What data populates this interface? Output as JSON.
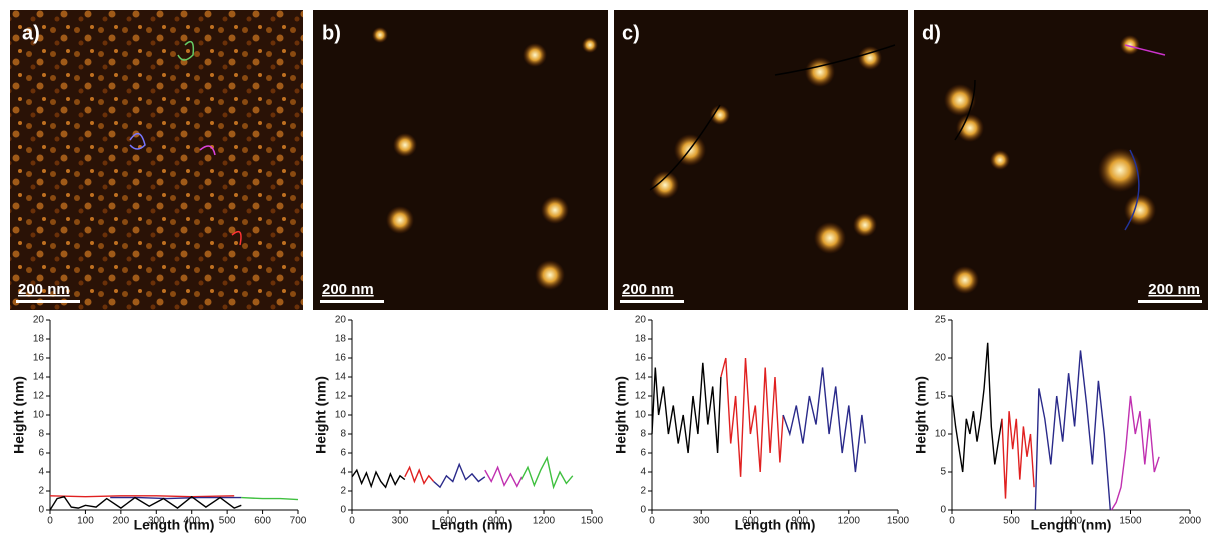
{
  "images": [
    {
      "label": "a)",
      "scale_bar": "200 nm"
    },
    {
      "label": "b)",
      "scale_bar": "200 nm"
    },
    {
      "label": "c)",
      "scale_bar": "200 nm"
    },
    {
      "label": "d)",
      "scale_bar": "200 nm"
    }
  ],
  "chart_data": [
    {
      "type": "line",
      "xlabel": "Length (nm)",
      "ylabel": "Height (nm)",
      "xlim": [
        0,
        700
      ],
      "xticks": [
        0,
        100,
        200,
        300,
        400,
        500,
        600,
        700
      ],
      "ylim": [
        0,
        20
      ],
      "yticks": [
        0,
        2,
        4,
        6,
        8,
        10,
        12,
        14,
        16,
        18,
        20
      ],
      "series": [
        {
          "color": "#e02020",
          "x": [
            0,
            100,
            200,
            300,
            400,
            520
          ],
          "values": [
            1.5,
            1.4,
            1.5,
            1.5,
            1.4,
            1.5
          ]
        },
        {
          "color": "#2a2a8a",
          "x": [
            170,
            250,
            330,
            420,
            500,
            540
          ],
          "values": [
            1.3,
            1.3,
            1.2,
            1.3,
            1.3,
            1.3
          ]
        },
        {
          "color": "#40c040",
          "x": [
            540,
            600,
            650,
            700
          ],
          "values": [
            1.3,
            1.2,
            1.2,
            1.1
          ]
        },
        {
          "color": "#000000",
          "x": [
            0,
            20,
            40,
            60,
            80,
            100,
            130,
            160,
            200,
            240,
            280,
            320,
            360,
            400,
            440,
            480,
            520,
            540
          ],
          "values": [
            0,
            1.2,
            1.4,
            0.3,
            0.2,
            0.5,
            0.3,
            1.2,
            0.2,
            1.3,
            0.4,
            1.2,
            0.2,
            1.4,
            0.3,
            1.3,
            0.2,
            0.5
          ]
        }
      ]
    },
    {
      "type": "line",
      "xlabel": "Length (nm)",
      "ylabel": "Height (nm)",
      "xlim": [
        0,
        1500
      ],
      "xticks": [
        0,
        300,
        600,
        900,
        1200,
        1500
      ],
      "ylim": [
        0,
        20
      ],
      "yticks": [
        0,
        2,
        4,
        6,
        8,
        10,
        12,
        14,
        16,
        18,
        20
      ],
      "series": [
        {
          "color": "#000000",
          "x": [
            0,
            30,
            60,
            90,
            120,
            150,
            180,
            210,
            240,
            270,
            300,
            330
          ],
          "values": [
            3.5,
            4.2,
            2.8,
            3.9,
            2.5,
            4,
            3,
            2.4,
            3.8,
            2.7,
            3.6,
            3.2
          ]
        },
        {
          "color": "#e02020",
          "x": [
            330,
            360,
            390,
            420,
            450,
            480,
            510
          ],
          "values": [
            3.5,
            4.5,
            3,
            4.2,
            2.8,
            3.6,
            3
          ]
        },
        {
          "color": "#2a2a8a",
          "x": [
            510,
            550,
            590,
            630,
            670,
            710,
            750,
            790,
            830
          ],
          "values": [
            3,
            2.4,
            3.6,
            3,
            4.8,
            3.2,
            3.8,
            3,
            3.5
          ]
        },
        {
          "color": "#c030b0",
          "x": [
            830,
            870,
            910,
            950,
            990,
            1030,
            1060
          ],
          "values": [
            4.2,
            3,
            4.5,
            2.6,
            3.8,
            2.5,
            3.5
          ]
        },
        {
          "color": "#40c040",
          "x": [
            1060,
            1100,
            1140,
            1180,
            1220,
            1260,
            1300,
            1340,
            1380
          ],
          "values": [
            3.2,
            4.5,
            2.6,
            4.2,
            5.5,
            2.4,
            4,
            2.8,
            3.6
          ]
        }
      ]
    },
    {
      "type": "line",
      "xlabel": "Length (nm)",
      "ylabel": "Height (nm)",
      "xlim": [
        0,
        1500
      ],
      "xticks": [
        0,
        300,
        600,
        900,
        1200,
        1500
      ],
      "ylim": [
        0,
        20
      ],
      "yticks": [
        0,
        2,
        4,
        6,
        8,
        10,
        12,
        14,
        16,
        18,
        20
      ],
      "series": [
        {
          "color": "#000000",
          "x": [
            0,
            20,
            40,
            70,
            100,
            130,
            160,
            190,
            220,
            250,
            280,
            310,
            340,
            370,
            400,
            420
          ],
          "values": [
            8,
            15,
            10,
            13,
            8,
            11,
            7,
            10,
            6,
            12,
            8,
            15.5,
            9,
            13,
            6,
            14
          ]
        },
        {
          "color": "#e02020",
          "x": [
            420,
            450,
            480,
            510,
            540,
            570,
            600,
            630,
            660,
            690,
            720,
            750,
            780,
            800
          ],
          "values": [
            14,
            16,
            7,
            12,
            3.5,
            16,
            8,
            11,
            4,
            15,
            6,
            14,
            5,
            10
          ]
        },
        {
          "color": "#2a2a8a",
          "x": [
            800,
            840,
            880,
            920,
            960,
            1000,
            1040,
            1080,
            1120,
            1160,
            1200,
            1240,
            1280,
            1300
          ],
          "values": [
            10,
            8,
            11,
            7,
            12,
            9,
            15,
            8,
            13,
            6,
            11,
            4,
            10,
            7
          ]
        }
      ]
    },
    {
      "type": "line",
      "xlabel": "Length (nm)",
      "ylabel": "Height (nm)",
      "xlim": [
        0,
        2000
      ],
      "xticks": [
        0,
        500,
        1000,
        1500,
        2000
      ],
      "ylim": [
        0,
        25
      ],
      "yticks": [
        0,
        5,
        10,
        15,
        20,
        25
      ],
      "series": [
        {
          "color": "#000000",
          "x": [
            0,
            30,
            60,
            90,
            120,
            150,
            180,
            210,
            240,
            270,
            300,
            330,
            360,
            390,
            420
          ],
          "values": [
            15,
            11,
            8,
            5,
            12,
            10,
            13,
            9,
            12,
            16,
            22,
            11,
            6,
            9,
            12
          ]
        },
        {
          "color": "#e02020",
          "x": [
            420,
            450,
            480,
            510,
            540,
            570,
            600,
            630,
            660,
            690
          ],
          "values": [
            12,
            1.5,
            13,
            8,
            12,
            4,
            11,
            7,
            10,
            3
          ]
        },
        {
          "color": "#2a2a8a",
          "x": [
            700,
            730,
            780,
            830,
            880,
            930,
            980,
            1030,
            1080,
            1130,
            1180,
            1230,
            1280,
            1330
          ],
          "values": [
            0,
            16,
            12,
            6,
            15,
            9,
            18,
            11,
            21,
            14,
            6,
            17,
            10,
            0
          ]
        },
        {
          "color": "#c030b0",
          "x": [
            1340,
            1380,
            1420,
            1460,
            1500,
            1540,
            1580,
            1620,
            1660,
            1700,
            1740
          ],
          "values": [
            0,
            1,
            3,
            8,
            15,
            10,
            13,
            6,
            12,
            5,
            7
          ]
        }
      ]
    }
  ]
}
